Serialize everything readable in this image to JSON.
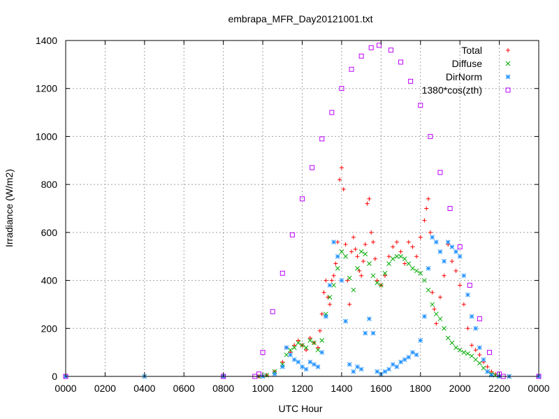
{
  "chart_data": {
    "type": "scatter",
    "title": "embrapa_MFR_Day20121001.txt",
    "xlabel": "UTC Hour",
    "ylabel": "Irradiance (W/m2)",
    "xlim": [
      0,
      24
    ],
    "ylim": [
      0,
      1400
    ],
    "x_ticks": [
      {
        "value": 0,
        "label": "0000"
      },
      {
        "value": 2,
        "label": "0200"
      },
      {
        "value": 4,
        "label": "0400"
      },
      {
        "value": 6,
        "label": "0600"
      },
      {
        "value": 8,
        "label": "0800"
      },
      {
        "value": 10,
        "label": "1000"
      },
      {
        "value": 12,
        "label": "1200"
      },
      {
        "value": 14,
        "label": "1400"
      },
      {
        "value": 16,
        "label": "1600"
      },
      {
        "value": 18,
        "label": "1800"
      },
      {
        "value": 20,
        "label": "2000"
      },
      {
        "value": 22,
        "label": "2200"
      },
      {
        "value": 24,
        "label": "0000"
      }
    ],
    "y_ticks": [
      0,
      200,
      400,
      600,
      800,
      1000,
      1200,
      1400
    ],
    "grid": true,
    "legend_position": "top-right",
    "series": [
      {
        "name": "Total",
        "marker": "plus",
        "color": "#ff0000",
        "x": [
          0,
          4,
          8,
          9.8,
          10.2,
          10.6,
          11.0,
          11.2,
          11.4,
          11.6,
          11.8,
          12.0,
          12.2,
          12.4,
          12.6,
          12.8,
          12.9,
          13.0,
          13.1,
          13.2,
          13.3,
          13.4,
          13.5,
          13.6,
          13.7,
          13.8,
          13.9,
          14.0,
          14.1,
          14.2,
          14.3,
          14.4,
          14.5,
          14.6,
          14.7,
          14.8,
          14.9,
          15.0,
          15.1,
          15.2,
          15.3,
          15.4,
          15.5,
          15.6,
          15.7,
          15.8,
          16.0,
          16.2,
          16.4,
          16.6,
          16.8,
          17.0,
          17.2,
          17.4,
          17.6,
          17.8,
          18.0,
          18.2,
          18.3,
          18.4,
          18.5,
          18.6,
          18.7,
          18.8,
          19.0,
          19.2,
          19.4,
          19.6,
          19.8,
          20.0,
          20.2,
          20.4,
          20.6,
          20.8,
          21.0,
          21.2,
          21.4,
          21.6,
          21.8,
          22.0,
          22.5,
          24
        ],
        "y": [
          0,
          0,
          0,
          0,
          5,
          20,
          60,
          120,
          100,
          130,
          150,
          130,
          110,
          160,
          140,
          120,
          190,
          260,
          350,
          400,
          330,
          300,
          400,
          420,
          470,
          560,
          820,
          870,
          780,
          550,
          400,
          300,
          520,
          580,
          530,
          500,
          440,
          420,
          480,
          550,
          720,
          740,
          600,
          560,
          490,
          400,
          380,
          420,
          500,
          540,
          560,
          520,
          470,
          560,
          540,
          500,
          580,
          650,
          700,
          740,
          600,
          350,
          280,
          220,
          330,
          420,
          550,
          480,
          440,
          380,
          300,
          200,
          130,
          110,
          90,
          60,
          40,
          20,
          10,
          0,
          0,
          0
        ]
      },
      {
        "name": "Diffuse",
        "marker": "cross",
        "color": "#00aa00",
        "x": [
          0,
          4,
          8,
          9.8,
          10.2,
          10.6,
          11.0,
          11.2,
          11.4,
          11.6,
          11.8,
          12.0,
          12.2,
          12.4,
          12.6,
          12.8,
          13.0,
          13.2,
          13.4,
          13.6,
          13.8,
          14.0,
          14.2,
          14.4,
          14.6,
          14.8,
          15.0,
          15.2,
          15.4,
          15.6,
          15.8,
          16.0,
          16.2,
          16.4,
          16.6,
          16.8,
          17.0,
          17.2,
          17.4,
          17.6,
          17.8,
          18.0,
          18.2,
          18.4,
          18.6,
          18.8,
          19.0,
          19.2,
          19.4,
          19.6,
          19.8,
          20.0,
          20.2,
          20.4,
          20.6,
          20.8,
          21.0,
          21.2,
          21.4,
          21.6,
          21.8,
          22.0,
          22.5,
          24
        ],
        "y": [
          0,
          0,
          0,
          0,
          5,
          20,
          50,
          90,
          110,
          120,
          140,
          130,
          120,
          150,
          140,
          110,
          150,
          260,
          330,
          380,
          450,
          520,
          500,
          410,
          360,
          450,
          520,
          510,
          470,
          420,
          390,
          380,
          430,
          470,
          490,
          500,
          500,
          490,
          470,
          450,
          440,
          430,
          400,
          360,
          300,
          260,
          240,
          200,
          160,
          140,
          120,
          110,
          100,
          95,
          85,
          70,
          55,
          35,
          20,
          10,
          5,
          0,
          0,
          0
        ]
      },
      {
        "name": "DirNorm",
        "marker": "asterisk",
        "color": "#1e90ff",
        "x": [
          0,
          4,
          8,
          10.0,
          10.6,
          11.0,
          11.2,
          11.4,
          11.6,
          11.8,
          12.0,
          12.2,
          12.4,
          12.6,
          12.8,
          13.0,
          13.2,
          13.4,
          13.6,
          13.8,
          14.0,
          14.2,
          14.4,
          14.6,
          14.8,
          15.0,
          15.2,
          15.4,
          15.6,
          15.8,
          16.0,
          16.2,
          16.4,
          16.6,
          16.8,
          17.0,
          17.2,
          17.4,
          17.6,
          17.8,
          18.0,
          18.2,
          18.4,
          18.6,
          18.8,
          19.0,
          19.2,
          19.4,
          19.6,
          19.8,
          20.0,
          20.2,
          20.4,
          20.6,
          20.8,
          21.0,
          21.2,
          21.4,
          21.6,
          22.0,
          22.5,
          24
        ],
        "y": [
          0,
          0,
          0,
          0,
          10,
          40,
          120,
          90,
          70,
          60,
          40,
          30,
          60,
          50,
          40,
          100,
          250,
          380,
          560,
          500,
          400,
          230,
          50,
          20,
          40,
          30,
          180,
          240,
          180,
          20,
          10,
          20,
          30,
          50,
          40,
          60,
          70,
          80,
          100,
          90,
          150,
          250,
          450,
          580,
          560,
          520,
          480,
          560,
          540,
          520,
          500,
          420,
          340,
          250,
          200,
          120,
          70,
          20,
          5,
          0,
          0,
          0
        ]
      },
      {
        "name": "1380*cos(zth)",
        "marker": "square",
        "color": "#bb00ff",
        "x": [
          0,
          8,
          9.6,
          9.8,
          10.0,
          10.5,
          11.0,
          11.5,
          12.0,
          12.5,
          13.0,
          13.5,
          14.0,
          14.5,
          15.0,
          15.5,
          15.9,
          16.5,
          17.0,
          17.5,
          18.0,
          18.5,
          19.0,
          19.5,
          20.0,
          20.5,
          21.0,
          21.5,
          22.0,
          22.2,
          24
        ],
        "y": [
          0,
          0,
          0,
          10,
          100,
          270,
          430,
          590,
          740,
          870,
          990,
          1100,
          1200,
          1280,
          1335,
          1370,
          1380,
          1360,
          1310,
          1230,
          1130,
          1000,
          850,
          700,
          540,
          380,
          240,
          100,
          10,
          0,
          0
        ]
      }
    ]
  }
}
